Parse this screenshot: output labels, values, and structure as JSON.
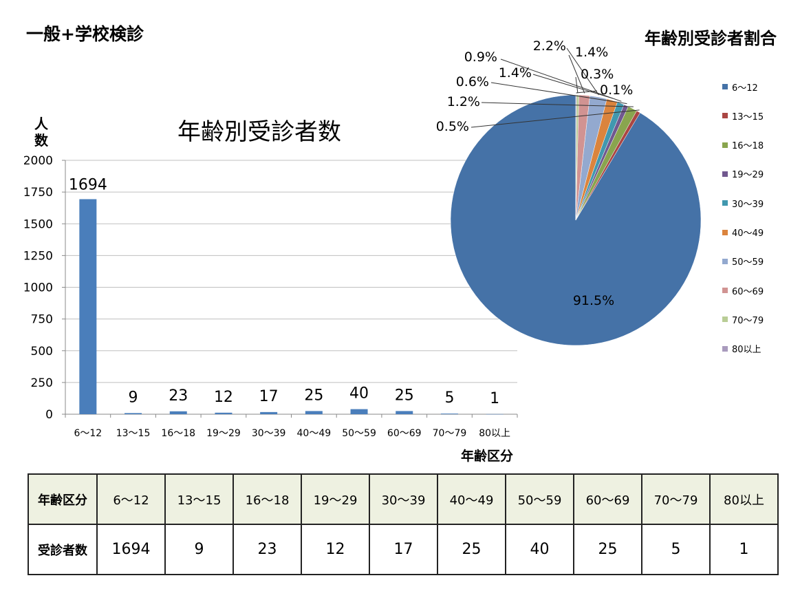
{
  "page": {
    "title": "一般+学校検診"
  },
  "colors": {
    "bar": "#4a7ebb",
    "gridline": "#bfbfbf",
    "table_header_bg": "#eef1e1",
    "slices": [
      "#4572a7",
      "#aa4643",
      "#89a54e",
      "#71588f",
      "#4198af",
      "#db843d",
      "#93a9cf",
      "#d19392",
      "#b9cd96",
      "#a99bbd"
    ]
  },
  "chart_data": [
    {
      "type": "bar",
      "title": "年齢別受診者数",
      "xlabel": "年齢区分",
      "ylabel": "人数",
      "categories": [
        "6～12",
        "13～15",
        "16～18",
        "19～29",
        "30～39",
        "40～49",
        "50～59",
        "60～69",
        "70～79",
        "80以上"
      ],
      "values": [
        1694,
        9,
        23,
        12,
        17,
        25,
        40,
        25,
        5,
        1
      ],
      "data_labels": [
        "1694",
        "9",
        "23",
        "12",
        "17",
        "25",
        "40",
        "25",
        "5",
        "1"
      ],
      "ylim": [
        0,
        2000
      ],
      "yticks": [
        0,
        250,
        500,
        750,
        1000,
        1250,
        1500,
        1750,
        2000
      ],
      "grid": true,
      "legend": "none"
    },
    {
      "type": "pie",
      "title": "年齢別受診者割合",
      "categories": [
        "6～12",
        "13～15",
        "16～18",
        "19～29",
        "30～39",
        "40～49",
        "50～59",
        "60～69",
        "70～79",
        "80以上"
      ],
      "values": [
        91.5,
        0.5,
        1.2,
        0.6,
        0.9,
        1.4,
        2.2,
        1.4,
        0.3,
        0.1
      ],
      "data_labels": [
        "91.5%",
        "0.5%",
        "1.2%",
        "0.6%",
        "0.9%",
        "1.4%",
        "2.2%",
        "1.4%",
        "0.3%",
        "0.1%"
      ],
      "legend": "right"
    },
    {
      "type": "table",
      "rows": [
        {
          "header": "年齢区分",
          "cells": [
            "6～12",
            "13～15",
            "16～18",
            "19～29",
            "30～39",
            "40～49",
            "50～59",
            "60～69",
            "70～79",
            "80以上"
          ]
        },
        {
          "header": "受診者数",
          "cells": [
            "1694",
            "9",
            "23",
            "12",
            "17",
            "25",
            "40",
            "25",
            "5",
            "1"
          ]
        }
      ]
    }
  ]
}
